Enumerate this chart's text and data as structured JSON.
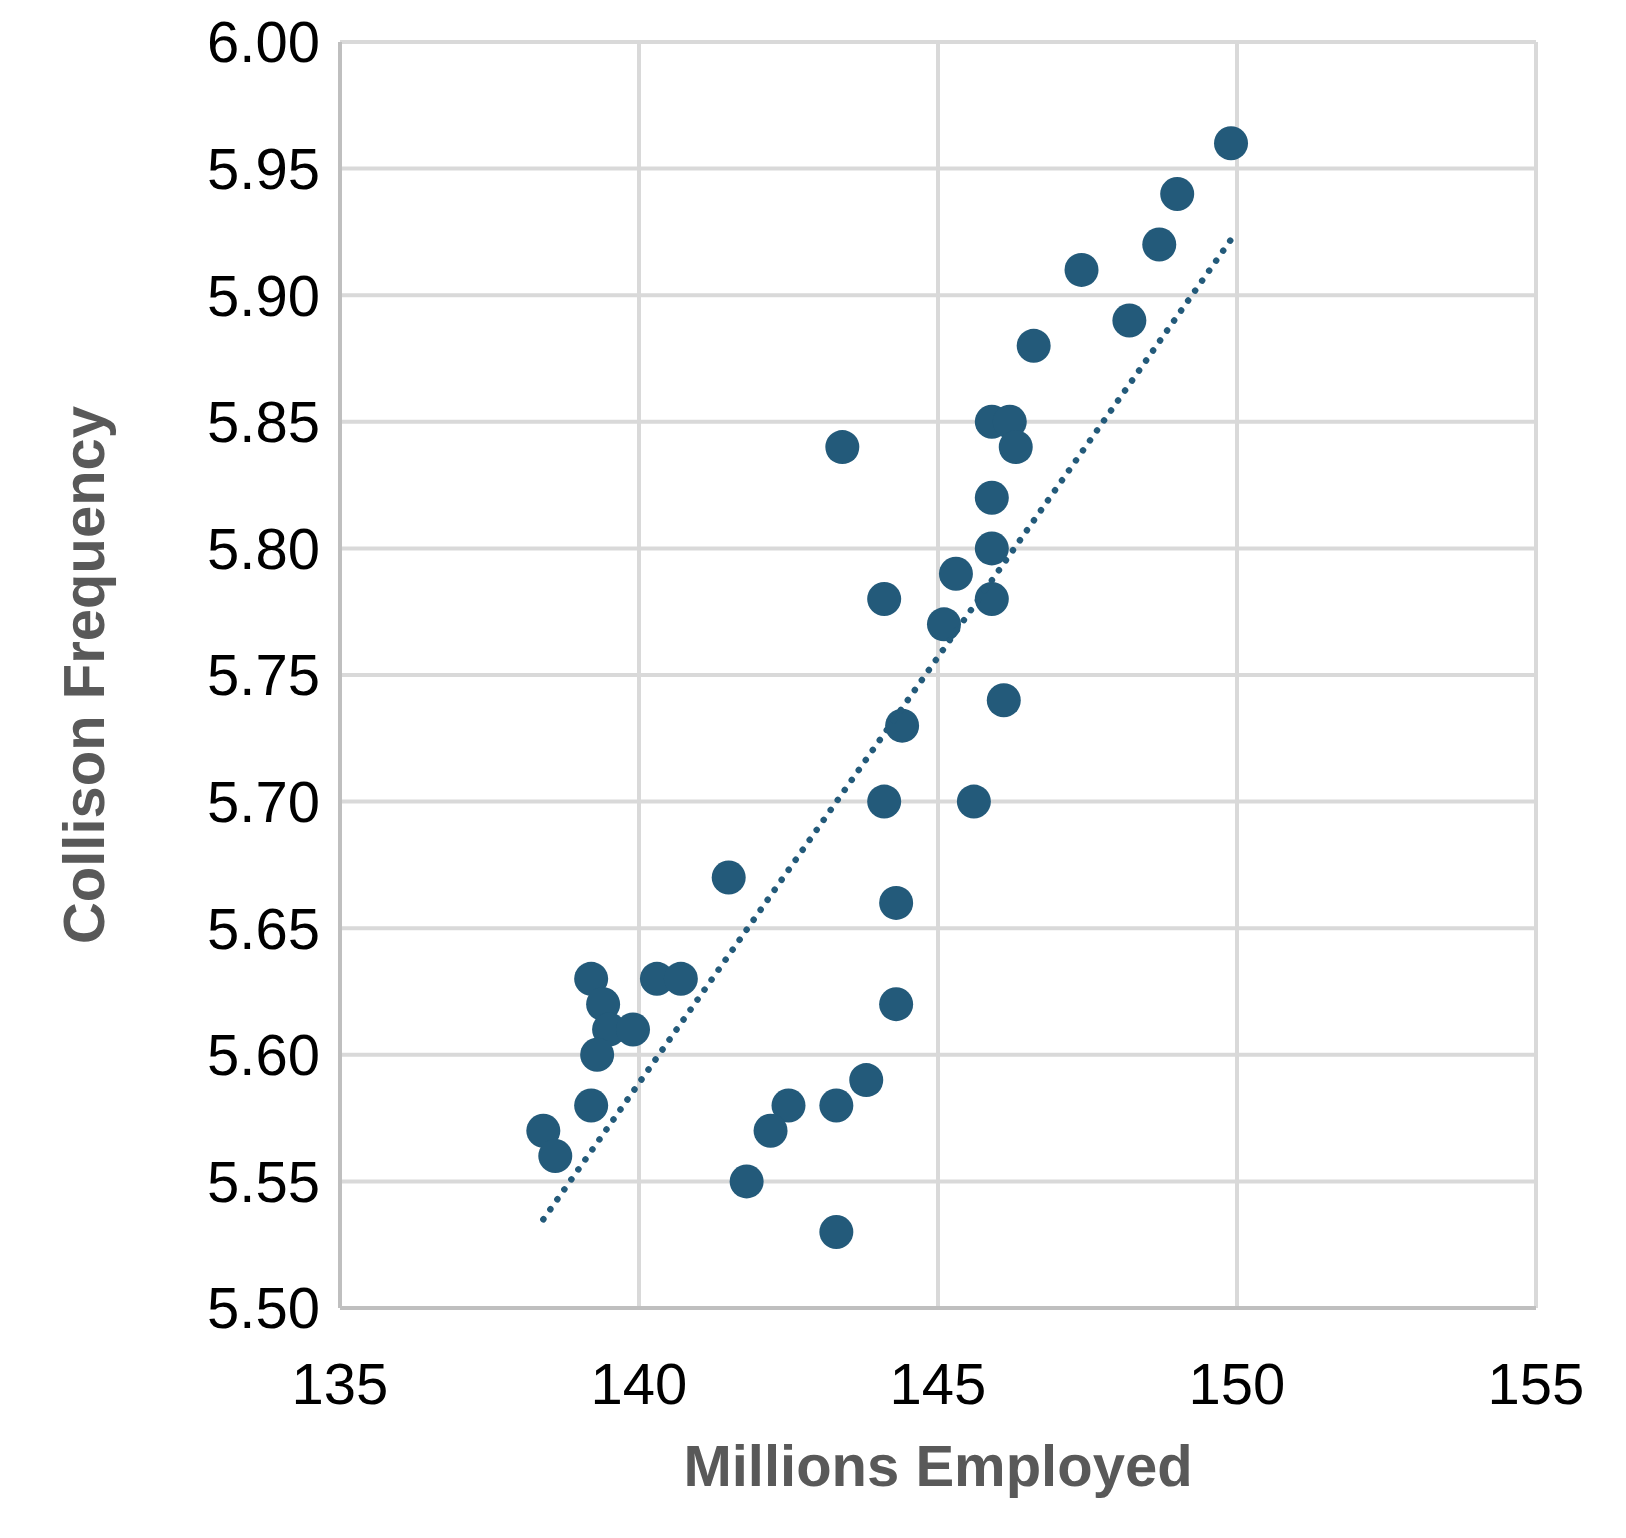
{
  "chart_data": {
    "type": "scatter",
    "xlabel": "Millions Employed",
    "ylabel": "Collison Frequency",
    "xlim": [
      135,
      155
    ],
    "xticks": [
      135,
      140,
      145,
      150,
      155
    ],
    "ylim": [
      5.5,
      6.0
    ],
    "yticks": [
      {
        "value": 5.5,
        "label": "5.50"
      },
      {
        "value": 5.55,
        "label": "5.55"
      },
      {
        "value": 5.6,
        "label": "5.60"
      },
      {
        "value": 5.65,
        "label": "5.65"
      },
      {
        "value": 5.7,
        "label": "5.70"
      },
      {
        "value": 5.75,
        "label": "5.75"
      },
      {
        "value": 5.8,
        "label": "5.80"
      },
      {
        "value": 5.85,
        "label": "5.85"
      },
      {
        "value": 5.9,
        "label": "5.90"
      },
      {
        "value": 5.95,
        "label": "5.95"
      },
      {
        "value": 6.0,
        "label": "6.00"
      }
    ],
    "grid": true,
    "series": [
      {
        "color": "#235a7a",
        "marker": "circle",
        "x": [
          149.9,
          149.0,
          148.7,
          147.4,
          148.2,
          146.6,
          145.9,
          146.2,
          146.3,
          143.4,
          145.9,
          145.9,
          145.3,
          144.1,
          145.9,
          145.1,
          146.1,
          144.4,
          144.1,
          145.6,
          141.5,
          144.3,
          139.2,
          140.3,
          140.7,
          139.4,
          144.3,
          139.5,
          139.9,
          139.3,
          143.8,
          139.2,
          142.5,
          143.3,
          138.4,
          142.2,
          138.6,
          141.8,
          143.3
        ],
        "values": [
          5.96,
          5.94,
          5.92,
          5.91,
          5.89,
          5.88,
          5.85,
          5.85,
          5.84,
          5.84,
          5.82,
          5.8,
          5.79,
          5.78,
          5.78,
          5.77,
          5.74,
          5.73,
          5.7,
          5.7,
          5.67,
          5.66,
          5.63,
          5.63,
          5.63,
          5.62,
          5.62,
          5.61,
          5.61,
          5.6,
          5.59,
          5.58,
          5.58,
          5.58,
          5.57,
          5.57,
          5.56,
          5.55,
          5.53
        ]
      },
      {
        "type": "line",
        "color": "#235a7a",
        "line_style": "dotted",
        "marker": "none",
        "x": [
          138.4,
          149.9
        ],
        "values": [
          5.535,
          5.922
        ]
      }
    ]
  }
}
